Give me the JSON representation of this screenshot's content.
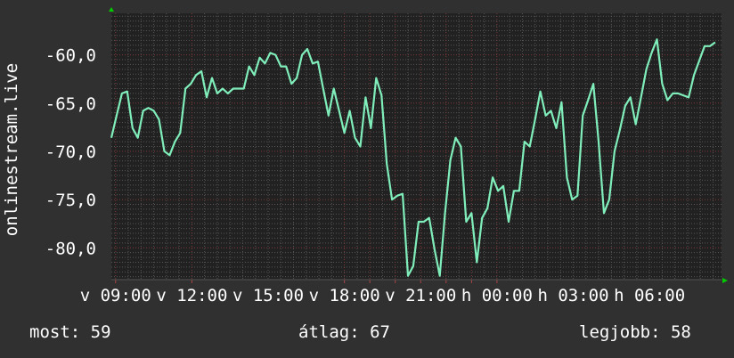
{
  "chart_data": {
    "type": "line",
    "ylabel": "onlinestream.live",
    "ylim": [
      -83.3,
      -55.7
    ],
    "yticks": [
      "-60,0",
      "-65,0",
      "-70,0",
      "-75,0",
      "-80,0"
    ],
    "ytick_values": [
      -60,
      -65,
      -70,
      -75,
      -80
    ],
    "xlim": [
      "08:50",
      "08:50 (+1 day)"
    ],
    "xticks": [
      "v 09:00",
      "v 12:00",
      "v 15:00",
      "v 18:00",
      "v 21:00",
      "h 00:00",
      "h 03:00",
      "h 06:00"
    ],
    "xtick_hours_after_start": [
      0.1667,
      3.1667,
      6.1667,
      9.1667,
      12.1667,
      15.1667,
      18.1667,
      21.1667
    ],
    "x_start": "08:50",
    "interval_minutes": 12.5,
    "grid": true,
    "series": [
      {
        "color": "#80eebb",
        "values": [
          -68.6,
          -66.3,
          -64.0,
          -63.8,
          -67.6,
          -68.6,
          -65.8,
          -65.5,
          -65.8,
          -66.7,
          -70.0,
          -70.4,
          -69.0,
          -68.1,
          -63.5,
          -63.0,
          -62.1,
          -61.7,
          -64.4,
          -62.4,
          -64.0,
          -63.5,
          -64.0,
          -63.5,
          -63.5,
          -63.5,
          -61.2,
          -62.1,
          -60.3,
          -60.9,
          -59.8,
          -60.0,
          -61.2,
          -61.2,
          -63.0,
          -62.4,
          -60.0,
          -59.4,
          -60.9,
          -60.7,
          -63.5,
          -66.3,
          -63.5,
          -65.8,
          -68.1,
          -65.8,
          -68.6,
          -69.5,
          -64.4,
          -67.6,
          -62.4,
          -64.2,
          -71.3,
          -75.0,
          -74.6,
          -74.4,
          -82.9,
          -81.9,
          -77.3,
          -77.3,
          -76.9,
          -80.1,
          -82.9,
          -76.4,
          -70.9,
          -68.6,
          -69.5,
          -77.3,
          -76.4,
          -81.5,
          -76.9,
          -75.9,
          -72.7,
          -74.1,
          -73.6,
          -77.3,
          -74.1,
          -74.1,
          -69.0,
          -69.5,
          -66.7,
          -63.8,
          -66.3,
          -65.8,
          -67.6,
          -64.9,
          -72.7,
          -75.0,
          -74.6,
          -66.3,
          -64.7,
          -63.0,
          -69.0,
          -76.4,
          -75.0,
          -70.0,
          -67.8,
          -65.3,
          -64.4,
          -67.2,
          -64.4,
          -61.5,
          -59.8,
          -58.4,
          -63.0,
          -64.7,
          -64.0,
          -64.0,
          -64.2,
          -64.4,
          -62.1,
          -60.6,
          -59.1,
          -59.1,
          -58.7
        ]
      }
    ]
  },
  "legend": {
    "most": "most: 59",
    "atlag": "átlag: 67",
    "legjobb": "legjobb: 58"
  },
  "colors": {
    "background": "#303030",
    "plot_background": "#212121",
    "line": "#80eebb",
    "major_grid": "#7a3a3a",
    "minor_grid": "#555555",
    "arrow": "#00cc00"
  }
}
